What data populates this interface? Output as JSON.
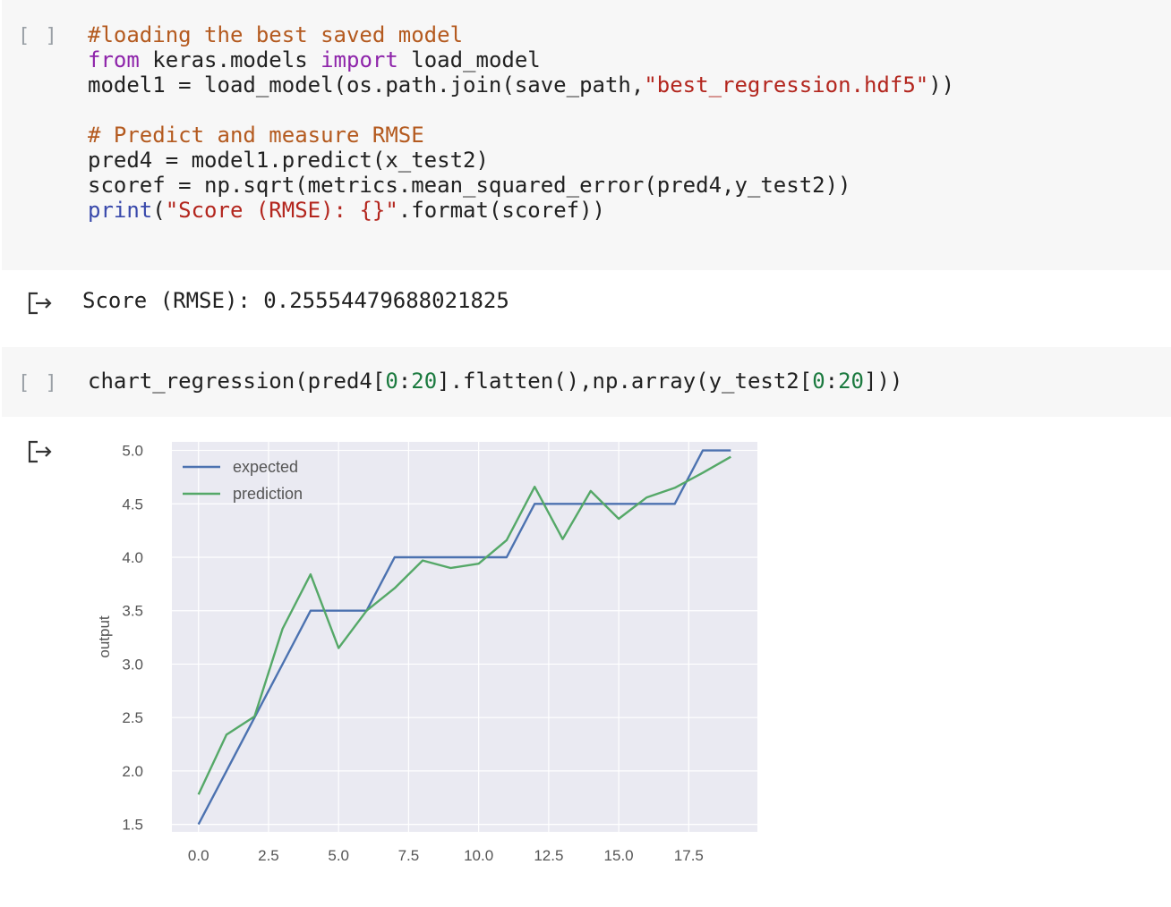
{
  "cells": [
    {
      "run_label": "[ ]",
      "lines": [
        [
          {
            "t": "cm",
            "v": "#loading the best saved model"
          }
        ],
        [
          {
            "t": "kw",
            "v": "from"
          },
          {
            "t": "",
            "v": " keras.models "
          },
          {
            "t": "kw",
            "v": "import"
          },
          {
            "t": "",
            "v": " load_model"
          }
        ],
        [
          {
            "t": "",
            "v": "model1 = load_model(os.path.join(save_path,"
          },
          {
            "t": "str",
            "v": "\"best_regression.hdf5\""
          },
          {
            "t": "",
            "v": "))"
          }
        ],
        [
          {
            "t": "",
            "v": ""
          }
        ],
        [
          {
            "t": "cm",
            "v": "# Predict and measure RMSE"
          }
        ],
        [
          {
            "t": "",
            "v": "pred4 = model1.predict(x_test2)"
          }
        ],
        [
          {
            "t": "",
            "v": "scoref = np.sqrt(metrics.mean_squared_error(pred4,y_test2))"
          }
        ],
        [
          {
            "t": "kw2",
            "v": "print"
          },
          {
            "t": "",
            "v": "("
          },
          {
            "t": "str",
            "v": "\"Score (RMSE): {}\""
          },
          {
            "t": "",
            "v": ".format(scoref))"
          }
        ]
      ]
    },
    {
      "run_label": "[ ]",
      "lines": [
        [
          {
            "t": "",
            "v": "chart_regression(pred4["
          },
          {
            "t": "num",
            "v": "0"
          },
          {
            "t": "",
            "v": ":"
          },
          {
            "t": "num",
            "v": "20"
          },
          {
            "t": "",
            "v": "].flatten(),np.array(y_test2["
          },
          {
            "t": "num",
            "v": "0"
          },
          {
            "t": "",
            "v": ":"
          },
          {
            "t": "num",
            "v": "20"
          },
          {
            "t": "",
            "v": "]))"
          }
        ]
      ]
    }
  ],
  "outputs": {
    "score_text": "Score (RMSE): 0.25554479688021825",
    "icon": "output-arrow-icon"
  },
  "chart_data": {
    "type": "line",
    "title": "",
    "xlabel": "",
    "ylabel": "output",
    "x": [
      0,
      1,
      2,
      3,
      4,
      5,
      6,
      7,
      8,
      9,
      10,
      11,
      12,
      13,
      14,
      15,
      16,
      17,
      18,
      19
    ],
    "xlim": [
      -0.95,
      19.95
    ],
    "ylim": [
      1.43,
      5.08
    ],
    "xticks": [
      "0.0",
      "2.5",
      "5.0",
      "7.5",
      "10.0",
      "12.5",
      "15.0",
      "17.5"
    ],
    "xtick_values": [
      0,
      2.5,
      5,
      7.5,
      10,
      12.5,
      15,
      17.5
    ],
    "yticks": [
      "1.5",
      "2.0",
      "2.5",
      "3.0",
      "3.5",
      "4.0",
      "4.5",
      "5.0"
    ],
    "ytick_values": [
      1.5,
      2,
      2.5,
      3,
      3.5,
      4,
      4.5,
      5
    ],
    "grid": true,
    "legend_position": "upper-left",
    "background": "#eaeaf2",
    "series": [
      {
        "name": "expected",
        "color": "#4c72b0",
        "values": [
          1.5,
          2.0,
          2.5,
          3.0,
          3.5,
          3.5,
          3.5,
          4.0,
          4.0,
          4.0,
          4.0,
          4.0,
          4.5,
          4.5,
          4.5,
          4.5,
          4.5,
          4.5,
          5.0,
          5.0
        ]
      },
      {
        "name": "prediction",
        "color": "#55a868",
        "values": [
          1.78,
          2.34,
          2.51,
          3.33,
          3.84,
          3.15,
          3.5,
          3.71,
          3.97,
          3.9,
          3.94,
          4.16,
          4.66,
          4.17,
          4.62,
          4.36,
          4.56,
          4.65,
          4.79,
          4.94
        ]
      }
    ]
  }
}
